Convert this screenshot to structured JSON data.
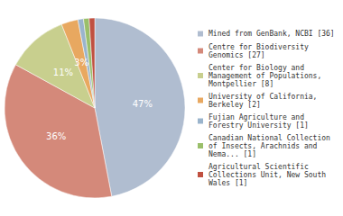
{
  "chart_data": {
    "type": "pie",
    "categories": [
      "Mined from GenBank, NCBI [36]",
      "Centre for Biodiversity\nGenomics [27]",
      "Center for Biology and\nManagement of Populations,\nMontpellier [8]",
      "University of California,\nBerkeley [2]",
      "Fujian Agriculture and\nForestry University [1]",
      "Canadian National Collection\nof Insects, Arachnids and\nNema... [1]",
      "Agricultural Scientific\nCollections Unit, New South\nWales [1]"
    ],
    "values": [
      47,
      36,
      11,
      3,
      1,
      1,
      1
    ],
    "value_labels": [
      "47%",
      "36%",
      "11%",
      "3%",
      null,
      null,
      null
    ],
    "colors": [
      "#b0bdd0",
      "#d4897a",
      "#c8cf8e",
      "#e8a860",
      "#9ab4cc",
      "#9abf6a",
      "#c05040"
    ],
    "data_labels": true,
    "legend": "right"
  }
}
